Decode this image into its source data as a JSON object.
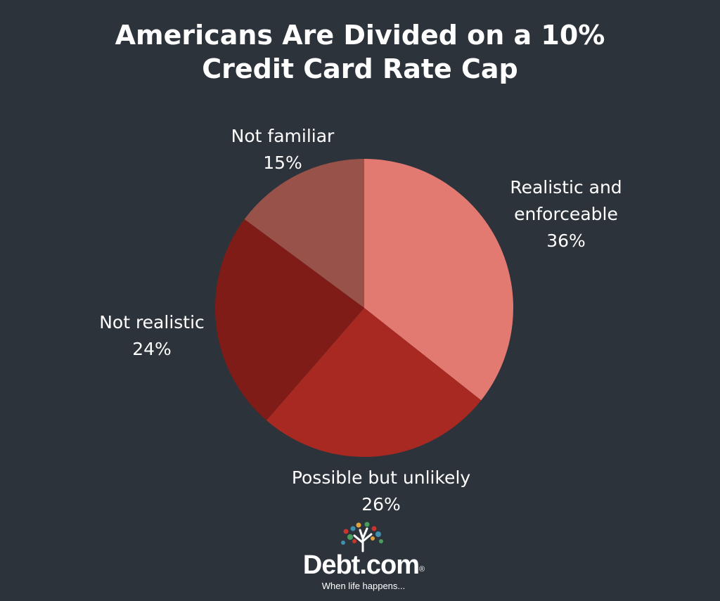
{
  "background_color": "#2d333b",
  "text_color": "#ffffff",
  "chart_data": {
    "type": "pie",
    "title_lines": [
      "Americans Are Divided on a 10%",
      "Credit Card Rate Cap"
    ],
    "slices": [
      {
        "label_lines": [
          "Realistic and",
          "enforceable"
        ],
        "value": 36,
        "value_label": "36%",
        "color": "#e27a72"
      },
      {
        "label_lines": [
          "Possible but unlikely"
        ],
        "value": 26,
        "value_label": "26%",
        "color": "#a82921"
      },
      {
        "label_lines": [
          "Not realistic"
        ],
        "value": 24,
        "value_label": "24%",
        "color": "#7f1c17"
      },
      {
        "label_lines": [
          "Not familiar"
        ],
        "value": 15,
        "value_label": "15%",
        "color": "#98524a"
      }
    ],
    "start_angle_degrees": 0,
    "direction": "clockwise",
    "legend": "none"
  },
  "logo": {
    "icon": "tree-icon",
    "brand": "Debt.com",
    "registered_mark": "®",
    "tagline": "When life happens..."
  }
}
